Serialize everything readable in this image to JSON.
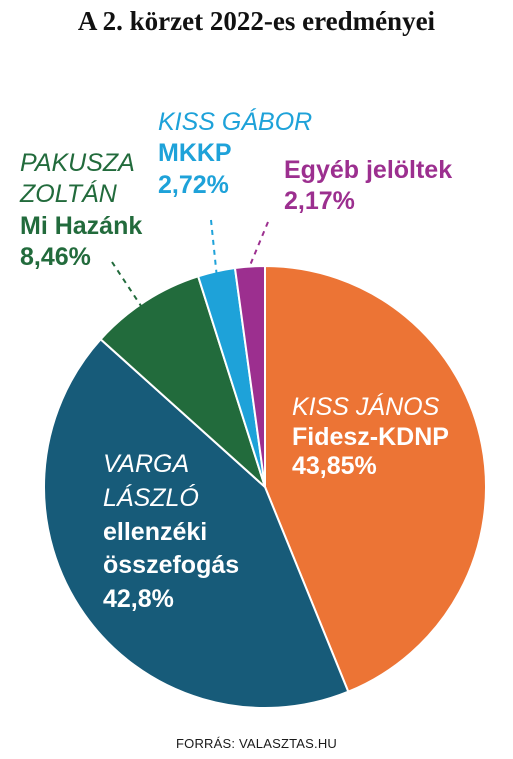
{
  "title": "A 2. körzet 2022-es eredményei",
  "source": "FORRÁS: VALASZTAS.HU",
  "chart_data": {
    "type": "pie",
    "title": "A 2. körzet 2022-es eredményei",
    "slices": [
      {
        "candidate": "KISS JÁNOS",
        "party": "Fidesz-KDNP",
        "value": 43.85,
        "label": "43,85%",
        "color": "#ec7435"
      },
      {
        "candidate": "VARGA LÁSZLÓ",
        "party": "ellenzéki összefogás",
        "value": 42.8,
        "label": "42,8%",
        "color": "#175b79"
      },
      {
        "candidate": "PAKUSZA ZOLTÁN",
        "party": "Mi Hazánk",
        "value": 8.46,
        "label": "8,46%",
        "color": "#226b3c"
      },
      {
        "candidate": "KISS GÁBOR",
        "party": "MKKP",
        "value": 2.72,
        "label": "2,72%",
        "color": "#1ea2d9"
      },
      {
        "candidate": "",
        "party": "Egyéb jelöltek",
        "value": 2.17,
        "label": "2,17%",
        "color": "#9c2f8f"
      }
    ]
  },
  "labels": {
    "fidesz": {
      "name": "KISS JÁNOS",
      "party": "Fidesz-KDNP",
      "pct": "43,85%"
    },
    "ellenzek": {
      "name1": "VARGA",
      "name2": "LÁSZLÓ",
      "party1": "ellenzéki",
      "party2": "összefogás",
      "pct": "42,8%"
    },
    "mihazank": {
      "name1": "PAKUSZA",
      "name2": "ZOLTÁN",
      "party": "Mi Hazánk",
      "pct": "8,46%"
    },
    "mkkp": {
      "name": "KISS GÁBOR",
      "party": "MKKP",
      "pct": "2,72%"
    },
    "egyeb": {
      "party": "Egyéb jelöltek",
      "pct": "2,17%"
    }
  }
}
